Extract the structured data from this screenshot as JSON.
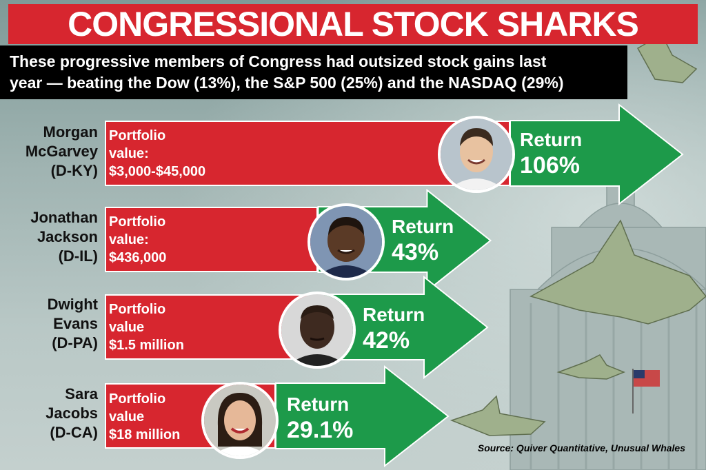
{
  "title": "CONGRESSIONAL STOCK SHARKS",
  "subtitle_line1": "These progressive members of Congress had outsized stock gains last",
  "subtitle_line2": "year — beating the Dow (13%), the S&P 500 (25%) and the NASDAQ (29%)",
  "source": "Source: Quiver Quantitative, Unusual Whales",
  "colors": {
    "title_red": "#d7262f",
    "bar_red": "#d7262f",
    "arrow_green": "#1d9a4a",
    "subtitle_bg": "#000000"
  },
  "chart_data": {
    "type": "bar",
    "orientation": "horizontal",
    "title": "CONGRESSIONAL STOCK SHARKS",
    "categories": [
      "Morgan McGarvey (D-KY)",
      "Jonathan Jackson (D-IL)",
      "Dwight Evans (D-PA)",
      "Sara Jacobs (D-CA)"
    ],
    "values": [
      106,
      43,
      42,
      29.1
    ],
    "unit": "%",
    "members": [
      {
        "name_lines": [
          "Morgan",
          "McGarvey",
          "(D-KY)"
        ],
        "portfolio_lines": [
          "Portfolio",
          "value:",
          "$3,000-$45,000"
        ],
        "return_title": "Return",
        "return_text": "106%",
        "return_value": 106,
        "avatar_icon": "portrait-icon",
        "skin": "#e8c2a0",
        "hair": "#3a2a1e",
        "shirt": "#f2f2f2"
      },
      {
        "name_lines": [
          "Jonathan",
          "Jackson",
          "(D-IL)"
        ],
        "portfolio_lines": [
          "Portfolio",
          "value:",
          "$436,000"
        ],
        "return_title": "Return",
        "return_text": "43%",
        "return_value": 43,
        "avatar_icon": "portrait-icon",
        "skin": "#5a3a26",
        "hair": "#1e140e",
        "shirt": "#1e2a4a"
      },
      {
        "name_lines": [
          "Dwight",
          "Evans",
          "(D-PA)"
        ],
        "portfolio_lines": [
          "Portfolio",
          "value",
          "$1.5 million"
        ],
        "return_title": "Return",
        "return_text": "42%",
        "return_value": 42,
        "avatar_icon": "portrait-icon",
        "skin": "#3e2a20",
        "hair": "#2a1c14",
        "shirt": "#222222"
      },
      {
        "name_lines": [
          "Sara",
          "Jacobs",
          "(D-CA)"
        ],
        "portfolio_lines": [
          "Portfolio",
          "value",
          "$18 million"
        ],
        "return_title": "Return",
        "return_text": "29.1%",
        "return_value": 29.1,
        "avatar_icon": "portrait-icon",
        "skin": "#e6b898",
        "hair": "#2c1d14",
        "shirt": "#ffffff"
      }
    ]
  }
}
